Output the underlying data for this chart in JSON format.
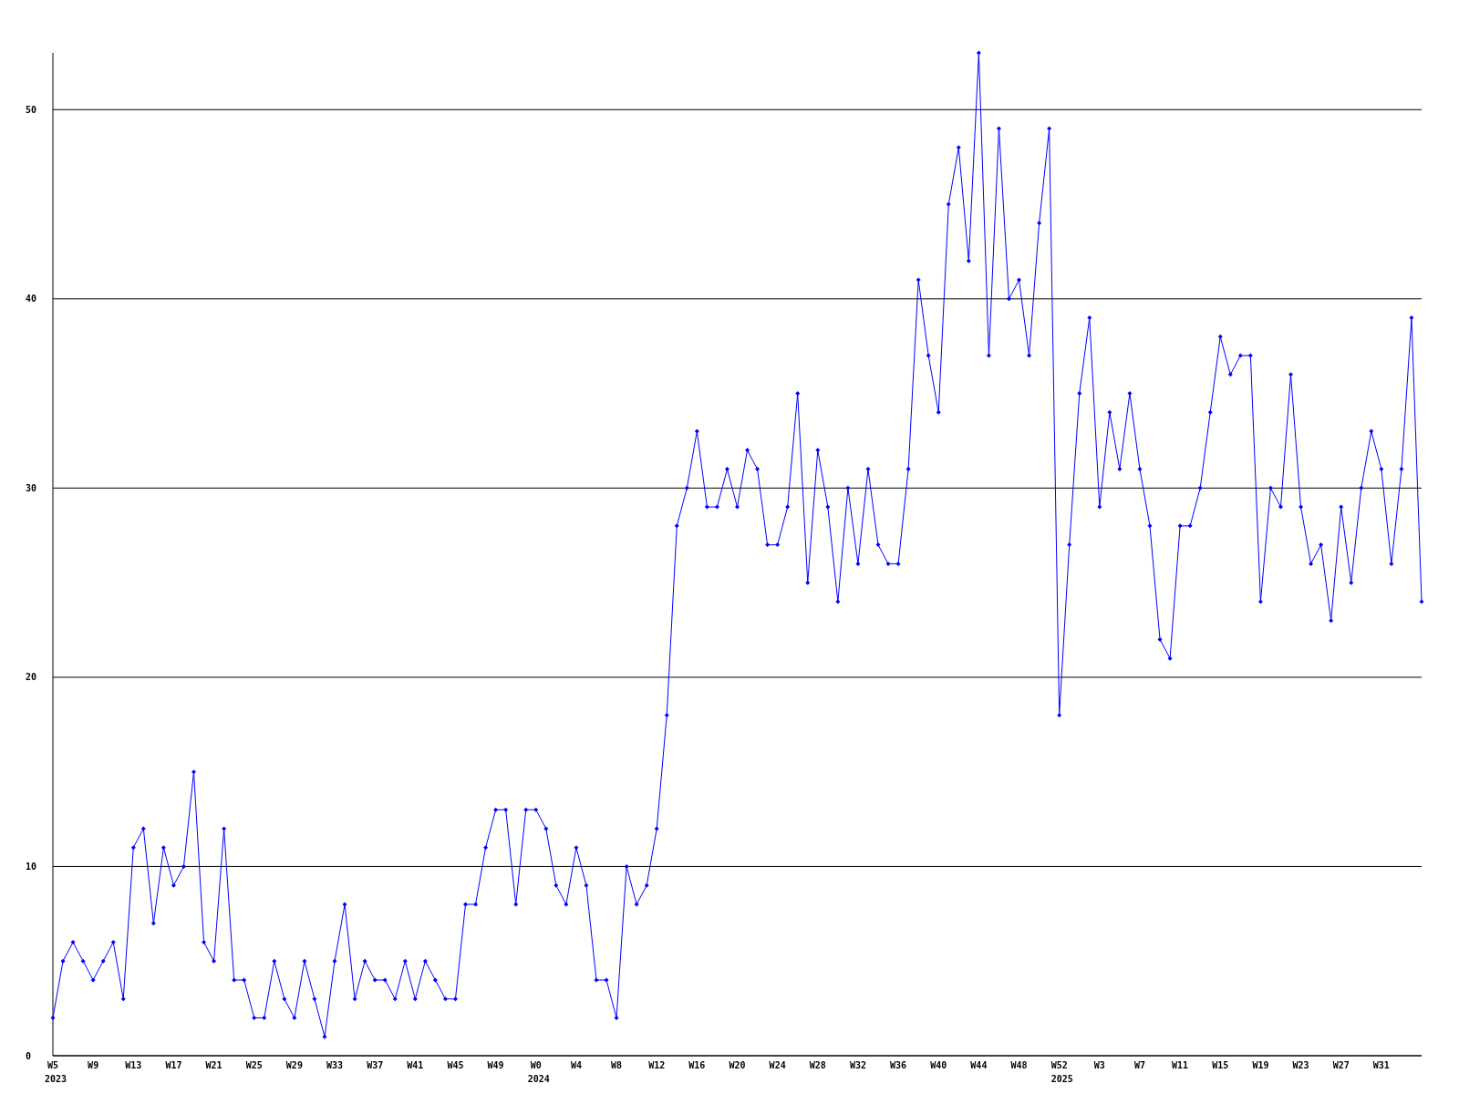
{
  "chart_data": {
    "type": "line",
    "categories": [
      "W5\n2023",
      null,
      null,
      null,
      "W9",
      null,
      null,
      null,
      "W13",
      null,
      null,
      null,
      "W17",
      null,
      null,
      null,
      "W21",
      null,
      null,
      null,
      "W25",
      null,
      null,
      null,
      "W29",
      null,
      null,
      null,
      "W33",
      null,
      null,
      null,
      "W37",
      null,
      null,
      null,
      "W41",
      null,
      null,
      null,
      "W45",
      null,
      null,
      null,
      "W49",
      null,
      null,
      null,
      "W0\n2024",
      null,
      null,
      null,
      "W4",
      null,
      null,
      null,
      "W8",
      null,
      null,
      null,
      "W12",
      null,
      null,
      null,
      "W16",
      null,
      null,
      null,
      "W20",
      null,
      null,
      null,
      "W24",
      null,
      null,
      null,
      "W28",
      null,
      null,
      null,
      "W32",
      null,
      null,
      null,
      "W36",
      null,
      null,
      null,
      "W40",
      null,
      null,
      null,
      "W44",
      null,
      null,
      null,
      "W48",
      null,
      null,
      null,
      "W52\n2025",
      null,
      null,
      null,
      "W3",
      null,
      null,
      null,
      "W7",
      null,
      null,
      null,
      "W11",
      null,
      null,
      null,
      "W15",
      null,
      null,
      null,
      "W19",
      null,
      null,
      null,
      "W23",
      null,
      null,
      null,
      "W27",
      null,
      null,
      null,
      "W31",
      null,
      null,
      null,
      null
    ],
    "series": [
      {
        "color": "#0000ff",
        "values": [
          2,
          5,
          6,
          5,
          4,
          5,
          6,
          3,
          11,
          12,
          7,
          11,
          9,
          10,
          15,
          6,
          5,
          12,
          4,
          4,
          2,
          2,
          5,
          3,
          2,
          5,
          3,
          1,
          5,
          8,
          3,
          5,
          4,
          4,
          3,
          5,
          3,
          5,
          4,
          3,
          3,
          8,
          8,
          11,
          13,
          13,
          8,
          13,
          13,
          12,
          9,
          8,
          11,
          9,
          4,
          4,
          2,
          10,
          8,
          9,
          12,
          18,
          28,
          30,
          33,
          29,
          29,
          31,
          29,
          32,
          31,
          27,
          27,
          29,
          35,
          25,
          32,
          29,
          24,
          30,
          26,
          31,
          27,
          26,
          26,
          31,
          41,
          37,
          34,
          45,
          48,
          42,
          53,
          37,
          49,
          40,
          41,
          37,
          44,
          49,
          18,
          27,
          35,
          39,
          29,
          34,
          31,
          35,
          31,
          28,
          22,
          21,
          28,
          28,
          30,
          34,
          38,
          36,
          37,
          37,
          24,
          30,
          29,
          36,
          29,
          26,
          27,
          23,
          29,
          25,
          30,
          33,
          31,
          26,
          31,
          39,
          24
        ]
      }
    ],
    "ylim": [
      0,
      53
    ],
    "yticks": [
      0,
      10,
      20,
      30,
      40,
      50
    ],
    "grid": "y",
    "marker": "diamond",
    "line_style": "solid"
  }
}
